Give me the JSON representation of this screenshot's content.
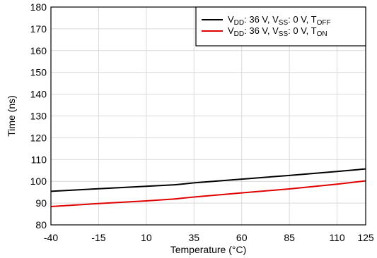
{
  "chart_data": {
    "type": "line",
    "title": "",
    "xlabel": "Temperature (°C)",
    "ylabel": "Time (ns)",
    "xlim": [
      -40,
      125
    ],
    "ylim": [
      80,
      180
    ],
    "x_ticks": [
      -40,
      -15,
      10,
      35,
      60,
      85,
      110,
      125
    ],
    "y_ticks": [
      80,
      90,
      100,
      110,
      120,
      130,
      140,
      150,
      160,
      170,
      180
    ],
    "x_tick_labels": [
      "-40",
      "-15",
      "10",
      "35",
      "60",
      "85",
      "110",
      "125"
    ],
    "y_tick_labels": [
      "80",
      "90",
      "100",
      "110",
      "120",
      "130",
      "140",
      "150",
      "160",
      "170",
      "180"
    ],
    "grid": true,
    "legend_position": "top-right",
    "series": [
      {
        "name": "VDD: 36 V, VSS: 0 V, TOFF",
        "color": "#000000",
        "label_parts": [
          {
            "text": "V",
            "sub": false
          },
          {
            "text": "DD",
            "sub": true
          },
          {
            "text": ": 36 V, V",
            "sub": false
          },
          {
            "text": "SS",
            "sub": true
          },
          {
            "text": ": 0 V, T",
            "sub": false
          },
          {
            "text": "OFF",
            "sub": true
          }
        ],
        "x": [
          -40,
          -15,
          10,
          25,
          35,
          60,
          85,
          110,
          125
        ],
        "y": [
          95.4,
          96.6,
          97.7,
          98.4,
          99.3,
          101.0,
          102.7,
          104.5,
          105.7
        ]
      },
      {
        "name": "VDD: 36 V, VSS: 0 V, TON",
        "color": "#e00000",
        "label_parts": [
          {
            "text": "V",
            "sub": false
          },
          {
            "text": "DD",
            "sub": true
          },
          {
            "text": ": 36 V, V",
            "sub": false
          },
          {
            "text": "SS",
            "sub": true
          },
          {
            "text": ": 0 V, T",
            "sub": false
          },
          {
            "text": "ON",
            "sub": true
          }
        ],
        "x": [
          -40,
          -15,
          10,
          25,
          35,
          60,
          85,
          110,
          125
        ],
        "y": [
          88.4,
          89.8,
          91.0,
          91.9,
          92.8,
          94.7,
          96.5,
          98.7,
          100.2
        ]
      }
    ]
  }
}
